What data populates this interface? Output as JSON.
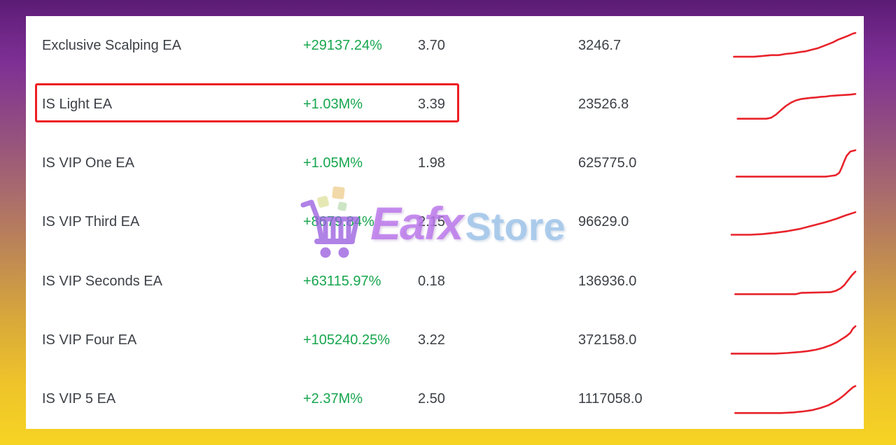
{
  "watermark": {
    "brand_first": "Eafx",
    "brand_second": "Store",
    "cart_icon": "shopping-cart-icon"
  },
  "colors": {
    "gain_green": "#17a64e",
    "text_dark": "#3d4147",
    "sparkline_red": "#e8232b",
    "highlight_red": "#ee1d23",
    "panel_bg": "#ffffff",
    "bg_top_purple": "#67217f",
    "bg_bottom_yellow": "#f6d423"
  },
  "highlight": {
    "row_index": 1
  },
  "table": {
    "rows": [
      {
        "name": "Exclusive Scalping EA",
        "gain": "+29137.24%",
        "ratio": "3.70",
        "balance": "3246.7",
        "highlighted": false,
        "spark": [
          [
            2,
            85
          ],
          [
            18,
            85
          ],
          [
            24,
            83
          ],
          [
            32,
            80
          ],
          [
            38,
            80
          ],
          [
            44,
            76
          ],
          [
            50,
            74
          ],
          [
            56,
            70
          ],
          [
            60,
            68
          ],
          [
            66,
            62
          ],
          [
            70,
            58
          ],
          [
            74,
            52
          ],
          [
            78,
            46
          ],
          [
            82,
            40
          ],
          [
            86,
            32
          ],
          [
            90,
            26
          ],
          [
            94,
            20
          ],
          [
            98,
            13
          ],
          [
            100,
            11
          ]
        ]
      },
      {
        "name": "IS Light EA",
        "gain": "+1.03M%",
        "ratio": "3.39",
        "balance": "23526.8",
        "highlighted": true,
        "spark": [
          [
            5,
            95
          ],
          [
            28,
            95
          ],
          [
            32,
            92
          ],
          [
            36,
            82
          ],
          [
            40,
            68
          ],
          [
            44,
            55
          ],
          [
            48,
            45
          ],
          [
            52,
            38
          ],
          [
            56,
            34
          ],
          [
            60,
            32
          ],
          [
            64,
            30
          ],
          [
            68,
            29
          ],
          [
            72,
            27
          ],
          [
            76,
            26
          ],
          [
            80,
            24
          ],
          [
            84,
            23
          ],
          [
            88,
            22
          ],
          [
            92,
            21
          ],
          [
            96,
            20
          ],
          [
            100,
            18
          ]
        ]
      },
      {
        "name": "IS VIP One EA",
        "gain": "+1.05M%",
        "ratio": "1.98",
        "balance": "625775.0",
        "highlighted": false,
        "spark": [
          [
            4,
            90
          ],
          [
            76,
            90
          ],
          [
            80,
            88
          ],
          [
            84,
            86
          ],
          [
            87,
            78
          ],
          [
            89,
            62
          ],
          [
            91,
            42
          ],
          [
            93,
            25
          ],
          [
            96,
            12
          ],
          [
            100,
            8
          ]
        ]
      },
      {
        "name": "IS VIP Third EA",
        "gain": "+8679.84%",
        "ratio": "2.15",
        "balance": "96629.0",
        "highlighted": false,
        "spark": [
          [
            0,
            88
          ],
          [
            15,
            88
          ],
          [
            25,
            86
          ],
          [
            35,
            82
          ],
          [
            45,
            77
          ],
          [
            55,
            70
          ],
          [
            65,
            60
          ],
          [
            75,
            50
          ],
          [
            85,
            38
          ],
          [
            92,
            28
          ],
          [
            100,
            18
          ]
        ]
      },
      {
        "name": "IS VIP Seconds EA",
        "gain": "+63115.97%",
        "ratio": "0.18",
        "balance": "136936.0",
        "highlighted": false,
        "spark": [
          [
            3,
            90
          ],
          [
            52,
            90
          ],
          [
            56,
            86
          ],
          [
            80,
            84
          ],
          [
            84,
            80
          ],
          [
            88,
            72
          ],
          [
            91,
            62
          ],
          [
            93,
            52
          ],
          [
            95,
            42
          ],
          [
            97,
            32
          ],
          [
            100,
            20
          ]
        ]
      },
      {
        "name": "IS VIP Four EA",
        "gain": "+105240.25%",
        "ratio": "3.22",
        "balance": "372158.0",
        "highlighted": false,
        "spark": [
          [
            0,
            90
          ],
          [
            35,
            90
          ],
          [
            45,
            88
          ],
          [
            55,
            85
          ],
          [
            62,
            82
          ],
          [
            68,
            78
          ],
          [
            74,
            72
          ],
          [
            80,
            64
          ],
          [
            85,
            55
          ],
          [
            89,
            45
          ],
          [
            93,
            35
          ],
          [
            96,
            25
          ],
          [
            98,
            12
          ],
          [
            100,
            5
          ]
        ]
      },
      {
        "name": "IS VIP 5 EA",
        "gain": "+2.37M%",
        "ratio": "2.50",
        "balance": "1117058.0",
        "highlighted": false,
        "spark": [
          [
            3,
            92
          ],
          [
            40,
            92
          ],
          [
            50,
            90
          ],
          [
            58,
            87
          ],
          [
            65,
            83
          ],
          [
            72,
            76
          ],
          [
            78,
            68
          ],
          [
            83,
            58
          ],
          [
            87,
            48
          ],
          [
            91,
            36
          ],
          [
            95,
            22
          ],
          [
            98,
            12
          ],
          [
            100,
            8
          ]
        ]
      }
    ]
  },
  "chart_data": {
    "type": "line",
    "note": "seven red equity-curve sparklines, one per table row; points are [x,y] in percent of sparkline box, y=0 is top",
    "series_source": "table.rows[].spark"
  }
}
